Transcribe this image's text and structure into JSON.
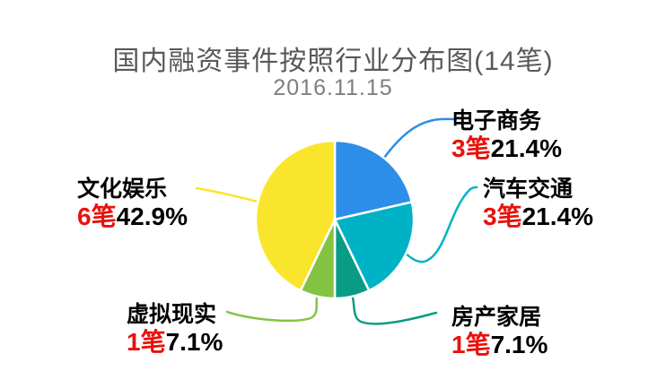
{
  "title": "国内融资事件按照行业分布图(14笔)",
  "subtitle": "2016.11.15",
  "colors": {
    "title_gray": "#595959",
    "subtitle_gray": "#7f7f7f",
    "count_red": "#e8120c",
    "label_black": "#000000",
    "background": "#ffffff"
  },
  "chart_data": {
    "type": "pie",
    "title": "国内融资事件按照行业分布图(14笔)",
    "subtitle": "2016.11.15",
    "total_count": 14,
    "total_count_text": "14笔",
    "legend_position": "callout-labels",
    "start_angle": "top, clockwise",
    "slices": [
      {
        "label": "电子商务",
        "count": 3,
        "count_text": "3笔",
        "percent": 21.4,
        "percent_text": "21.4%",
        "color": "#2d8eea"
      },
      {
        "label": "汽车交通",
        "count": 3,
        "count_text": "3笔",
        "percent": 21.4,
        "percent_text": "21.4%",
        "color": "#00b2c5"
      },
      {
        "label": "房产家居",
        "count": 1,
        "count_text": "1笔",
        "percent": 7.1,
        "percent_text": "7.1%",
        "color": "#089b86"
      },
      {
        "label": "虚拟现实",
        "count": 1,
        "count_text": "1笔",
        "percent": 7.1,
        "percent_text": "7.1%",
        "color": "#84c342"
      },
      {
        "label": "文化娱乐",
        "count": 6,
        "count_text": "6笔",
        "percent": 42.9,
        "percent_text": "42.9%",
        "color": "#fae52d"
      }
    ]
  }
}
